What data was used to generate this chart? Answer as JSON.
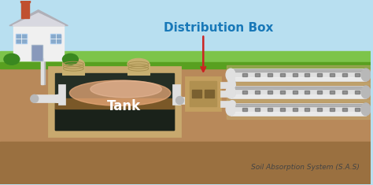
{
  "title": "Distribution Box",
  "subtitle": "Soil Absorption System (S.A.S)",
  "tank_label": "Tank",
  "bg_sky_color": "#b8dff0",
  "bg_grass_top": "#7dc44a",
  "bg_grass_mid": "#6ab038",
  "bg_soil_color": "#b8895a",
  "bg_soil_dark": "#9a7040",
  "tank_outer_color": "#c8a96e",
  "tank_outer_edge": "#a08040",
  "tank_inner_color": "#252f25",
  "tank_bottom_dark": "#1a221a",
  "tank_scum_color": "#e8a878",
  "tank_dirt_color": "#7a5828",
  "dist_box_color": "#c4a060",
  "dist_box_edge": "#cc2222",
  "pipe_light": "#e0e0e0",
  "pipe_mid": "#b8b8b8",
  "pipe_dark": "#888888",
  "pipe_shadow": "#606060",
  "house_wall": "#f0f0f0",
  "house_roof_dark": "#b0b0b8",
  "house_roof_light": "#d8d8e0",
  "house_chimney": "#c05030",
  "cap_body": "#c8b070",
  "cap_edge": "#a09050",
  "cap_ring": "#a89050",
  "title_color": "#1878b8",
  "label_color": "#ffffff",
  "subtitle_color": "#444444",
  "arrow_color": "#cc2222",
  "grass_dark": "#58a020",
  "bush_color": "#3a8820",
  "gravel_color": "#c0a870",
  "pipe_hole_color": "#606060"
}
